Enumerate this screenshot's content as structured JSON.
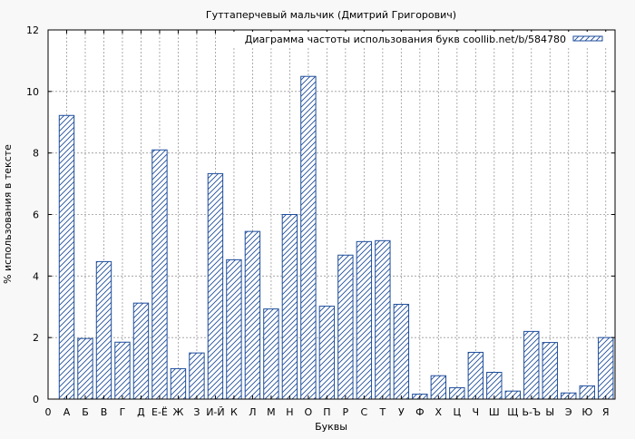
{
  "chart_data": {
    "type": "bar",
    "title": "Гуттаперчевый мальчик (Дмитрий Григорович)",
    "xlabel": "Буквы",
    "ylabel": "% использования в тексте",
    "legend": "Диаграмма частоты использования букв coollib.net/b/584780",
    "legend_position": "top-right",
    "grid": true,
    "ylim": [
      0,
      12
    ],
    "yticks": [
      0,
      2,
      4,
      6,
      8,
      10,
      12
    ],
    "x_start_label": "0",
    "bar_color": "#1f4e9c",
    "categories": [
      "А",
      "Б",
      "В",
      "Г",
      "Д",
      "Е-Ё",
      "Ж",
      "З",
      "И-Й",
      "К",
      "Л",
      "М",
      "Н",
      "О",
      "П",
      "Р",
      "С",
      "Т",
      "У",
      "Ф",
      "Х",
      "Ц",
      "Ч",
      "Ш",
      "Щ",
      "Ь-Ъ",
      "Ы",
      "Э",
      "Ю",
      "Я"
    ],
    "values": [
      9.22,
      1.97,
      4.47,
      1.85,
      3.12,
      8.1,
      0.99,
      1.5,
      7.33,
      4.53,
      5.45,
      2.93,
      6.0,
      10.49,
      3.02,
      4.68,
      5.12,
      5.15,
      3.08,
      0.16,
      0.76,
      0.37,
      1.52,
      0.87,
      0.26,
      2.2,
      1.84,
      0.2,
      0.43,
      2.0
    ]
  }
}
